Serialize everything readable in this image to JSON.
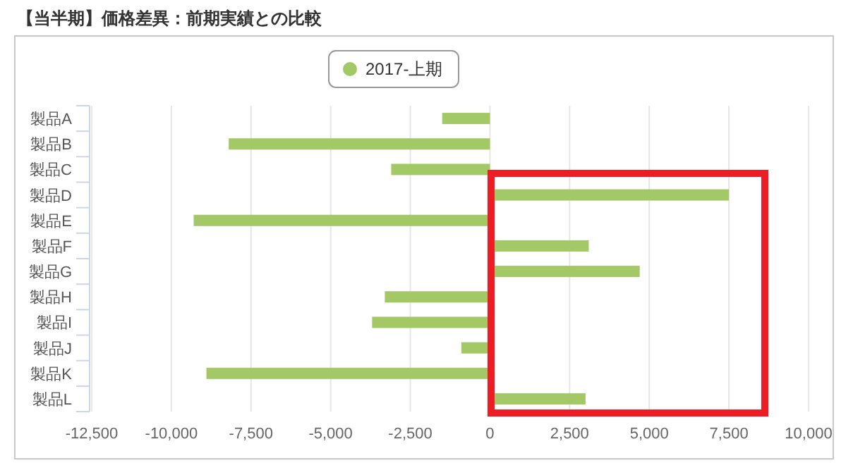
{
  "chart_data": {
    "type": "bar",
    "orientation": "horizontal",
    "title": "【当半期】価格差異：前期実績との比較",
    "categories": [
      "製品A",
      "製品B",
      "製品C",
      "製品D",
      "製品E",
      "製品F",
      "製品G",
      "製品H",
      "製品I",
      "製品J",
      "製品K",
      "製品L"
    ],
    "series": [
      {
        "name": "2017-上期",
        "color": "#a3c866",
        "values": [
          -1500,
          -8200,
          -3100,
          7500,
          -9300,
          3100,
          4700,
          -3300,
          -3700,
          -900,
          -8900,
          3000
        ]
      }
    ],
    "xlim": [
      -12500,
      10000
    ],
    "xticks": [
      {
        "value": -12500,
        "label": "-12,500"
      },
      {
        "value": -10000,
        "label": "-10,000"
      },
      {
        "value": -7500,
        "label": "-7,500"
      },
      {
        "value": -5000,
        "label": "-5,000"
      },
      {
        "value": -2500,
        "label": "-2,500"
      },
      0,
      {
        "value": 2500,
        "label": "2,500"
      },
      {
        "value": 5000,
        "label": "5,000"
      },
      {
        "value": 7500,
        "label": "7,500"
      },
      {
        "value": 10000,
        "label": "10,000"
      }
    ],
    "grid": "x",
    "legend": "top"
  }
}
